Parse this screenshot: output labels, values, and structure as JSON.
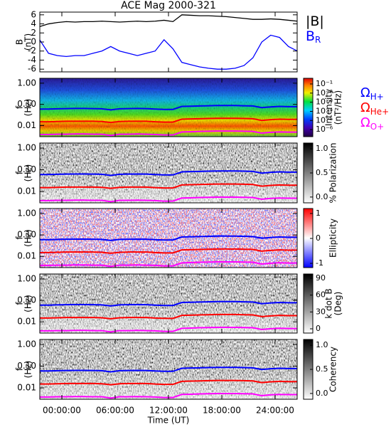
{
  "chart_data": [
    {
      "type": "line",
      "title": "ACE Mag 2000-321",
      "ylabel": "B",
      "ylabel_unit": "(nT)",
      "x": [
        -2.5,
        -1.5,
        -0.5,
        0.5,
        1.5,
        2.5,
        3.5,
        4.5,
        5.5,
        6.5,
        7.5,
        8.5,
        9.5,
        10.5,
        11.5,
        12.5,
        13.5,
        14.5,
        15.5,
        16.5,
        17.5,
        18.5,
        19.5,
        20.5,
        21.5,
        22.5,
        23.5,
        24.5,
        25.5,
        26.5
      ],
      "ylim": [
        -6.6,
        6.6
      ],
      "yticks": [
        -6,
        -4,
        -2,
        0,
        2,
        4,
        6
      ],
      "series": [
        {
          "name": "|B|",
          "color": "#000000",
          "values": [
            3.4,
            4.0,
            4.3,
            4.5,
            4.4,
            4.5,
            4.5,
            4.6,
            4.5,
            4.4,
            4.5,
            4.6,
            4.5,
            4.6,
            4.8,
            4.5,
            6.0,
            5.9,
            5.8,
            5.8,
            5.7,
            5.6,
            5.4,
            5.2,
            5.0,
            5.0,
            5.1,
            5.0,
            4.8,
            4.6
          ]
        },
        {
          "name": "B",
          "name_sub": "R",
          "color": "#0000ff",
          "values": [
            0.5,
            -2.5,
            -3,
            -3.2,
            -3,
            -3,
            -2.5,
            -2,
            -1,
            -2,
            -2.5,
            -3,
            -2.5,
            -2,
            0.5,
            -1.5,
            -4.5,
            -5,
            -5.5,
            -5.8,
            -6,
            -6,
            -5.8,
            -5.2,
            -3.5,
            0,
            1.5,
            1,
            -1,
            -2
          ]
        }
      ]
    },
    {
      "type": "spectrogram",
      "colormap": "rainbow",
      "ylabel": "f",
      "ylabel_unit": "(Hz)",
      "yscale": "log",
      "ylim": [
        0.003,
        1.7
      ],
      "yticks": [
        {
          "value": 0.01,
          "label": "0.01"
        },
        {
          "value": 0.1,
          "label": "0.10"
        },
        {
          "value": 1,
          "label": "1.00"
        }
      ],
      "colorbar": {
        "label": "Intensity",
        "label_unit": "(nT²/Hz)",
        "scale": "log",
        "lim": [
          1.7e-07,
          0.42
        ],
        "ticks": [
          {
            "value": 0.1,
            "label": "10⁻¹"
          },
          {
            "value": 0.01,
            "label": "10⁻²"
          },
          {
            "value": 0.001,
            "label": "10⁻³"
          },
          {
            "value": 0.0001,
            "label": "10⁻⁴"
          },
          {
            "value": 1e-05,
            "label": "10⁻⁵"
          },
          {
            "value": 1e-06,
            "label": "10⁻⁶"
          }
        ]
      },
      "x": [
        -2.5,
        -1.5,
        -0.5,
        0.5,
        1.5,
        2.5,
        3.5,
        4.5,
        5.5,
        6.5,
        7.5,
        8.5,
        9.5,
        10.5,
        11.5,
        12.5,
        13.5,
        14.5,
        15.5,
        16.5,
        17.5,
        18.5,
        19.5,
        20.5,
        21.5,
        22.5,
        23.5,
        24.5,
        25.5,
        26.5
      ],
      "series": [
        {
          "name": "Ω",
          "name_sub": "H+",
          "color": "#0000ff",
          "values": [
            0.06,
            0.06,
            0.062,
            0.063,
            0.064,
            0.064,
            0.063,
            0.062,
            0.055,
            0.062,
            0.063,
            0.064,
            0.063,
            0.06,
            0.058,
            0.058,
            0.08,
            0.082,
            0.084,
            0.086,
            0.088,
            0.088,
            0.088,
            0.086,
            0.084,
            0.07,
            0.076,
            0.08,
            0.078,
            0.078
          ]
        },
        {
          "name": "Ω",
          "name_sub": "He+",
          "color": "#ff0000",
          "values": [
            0.015,
            0.015,
            0.0155,
            0.016,
            0.016,
            0.016,
            0.016,
            0.0155,
            0.014,
            0.0155,
            0.016,
            0.016,
            0.016,
            0.015,
            0.0145,
            0.0145,
            0.02,
            0.0205,
            0.021,
            0.0215,
            0.022,
            0.022,
            0.022,
            0.0215,
            0.021,
            0.0175,
            0.019,
            0.02,
            0.0195,
            0.0195
          ]
        },
        {
          "name": "Ω",
          "name_sub": "O+",
          "color": "#ff00ff",
          "values": [
            0.0038,
            0.0038,
            0.0039,
            0.0039,
            0.004,
            0.004,
            0.0039,
            0.0039,
            0.0034,
            0.0039,
            0.0039,
            0.004,
            0.0039,
            0.0038,
            0.0036,
            0.0036,
            0.005,
            0.0051,
            0.0053,
            0.0054,
            0.0055,
            0.0055,
            0.0055,
            0.0054,
            0.0053,
            0.0044,
            0.0048,
            0.005,
            0.0049,
            0.0049
          ]
        }
      ]
    },
    {
      "type": "spectrogram",
      "colormap": "gray",
      "ylabel": "f",
      "ylabel_unit": "(Hz)",
      "yscale": "log",
      "ylim": [
        0.003,
        1.7
      ],
      "yticks": [
        {
          "value": 0.01,
          "label": "0.01"
        },
        {
          "value": 0.1,
          "label": "0.10"
        },
        {
          "value": 1,
          "label": "1.00"
        }
      ],
      "colorbar": {
        "label": "% Polarization",
        "scale": "linear",
        "lim": [
          -0.12,
          1.12
        ],
        "ticks": [
          {
            "value": 0,
            "label": "0.0"
          },
          {
            "value": 0.5,
            "label": "0.5"
          },
          {
            "value": 1,
            "label": "1.0"
          }
        ]
      }
    },
    {
      "type": "spectrogram",
      "colormap": "red-blue",
      "ylabel": "f",
      "ylabel_unit": "(Hz)",
      "yscale": "log",
      "ylim": [
        0.003,
        1.7
      ],
      "yticks": [
        {
          "value": 0.01,
          "label": "0.01"
        },
        {
          "value": 0.1,
          "label": "0.10"
        },
        {
          "value": 1,
          "label": "1.00"
        }
      ],
      "colorbar": {
        "label": "Ellipticity",
        "scale": "linear",
        "lim": [
          -1.17,
          1.2
        ],
        "ticks": [
          -1,
          0,
          1
        ]
      }
    },
    {
      "type": "spectrogram",
      "colormap": "gray",
      "ylabel": "f",
      "ylabel_unit": "(Hz)",
      "yscale": "log",
      "ylim": [
        0.003,
        1.7
      ],
      "yticks": [
        {
          "value": 0.01,
          "label": "0.01"
        },
        {
          "value": 0.1,
          "label": "0.10"
        },
        {
          "value": 1,
          "label": "1.00"
        }
      ],
      "colorbar": {
        "label": "k dot B",
        "label_unit": "(Deg)",
        "scale": "linear",
        "lim": [
          -7.6,
          97.6
        ],
        "ticks": [
          0,
          30,
          60,
          90
        ]
      }
    },
    {
      "type": "spectrogram",
      "colormap": "gray",
      "ylabel": "f",
      "ylabel_unit": "(Hz)",
      "yscale": "log",
      "ylim": [
        0.003,
        1.7
      ],
      "yticks": [
        {
          "value": 0.01,
          "label": "0.01"
        },
        {
          "value": 0.1,
          "label": "0.10"
        },
        {
          "value": 1,
          "label": "1.00"
        }
      ],
      "colorbar": {
        "label": "Coherency",
        "scale": "linear",
        "lim": [
          -0.12,
          1.12
        ],
        "ticks": [
          {
            "value": 0,
            "label": "0.0"
          },
          {
            "value": 0.5,
            "label": "0.5"
          },
          {
            "value": 1,
            "label": "1.0"
          }
        ]
      },
      "xlabel": "Time (UT)",
      "xlim": [
        -2.48,
        26.48
      ],
      "xticks": [
        {
          "value": 0,
          "label": "00:00:00"
        },
        {
          "value": 6,
          "label": "06:00:00"
        },
        {
          "value": 12,
          "label": "12:00:00"
        },
        {
          "value": 18,
          "label": "18:00:00"
        },
        {
          "value": 24,
          "label": "24:00:00"
        }
      ]
    }
  ]
}
